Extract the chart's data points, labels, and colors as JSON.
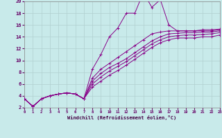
{
  "background_color": "#c8eaea",
  "grid_color": "#b0d0d0",
  "line_color": "#880088",
  "xlabel": "Windchill (Refroidissement éolien,°C)",
  "xlim": [
    0,
    23
  ],
  "ylim": [
    2,
    20
  ],
  "yticks": [
    2,
    4,
    6,
    8,
    10,
    12,
    14,
    16,
    18,
    20
  ],
  "xticks": [
    0,
    1,
    2,
    3,
    4,
    5,
    6,
    7,
    8,
    9,
    10,
    11,
    12,
    13,
    14,
    15,
    16,
    17,
    18,
    19,
    20,
    21,
    22,
    23
  ],
  "series": [
    [
      3.5,
      2.2,
      3.5,
      4.0,
      4.3,
      4.5,
      4.3,
      3.5,
      8.5,
      11.0,
      14.0,
      15.5,
      18.0,
      18.0,
      21.5,
      19.0,
      20.3,
      16.0,
      15.0,
      15.0,
      15.0,
      15.2,
      15.2,
      15.3
    ],
    [
      3.5,
      2.2,
      3.5,
      4.0,
      4.3,
      4.5,
      4.3,
      3.5,
      7.0,
      8.5,
      9.5,
      10.5,
      11.5,
      12.5,
      13.5,
      14.5,
      14.8,
      15.0,
      15.0,
      15.0,
      15.0,
      15.0,
      15.0,
      15.2
    ],
    [
      3.5,
      2.2,
      3.5,
      4.0,
      4.3,
      4.5,
      4.3,
      3.5,
      6.5,
      7.8,
      8.8,
      9.5,
      10.3,
      11.3,
      12.3,
      13.3,
      14.0,
      14.5,
      14.6,
      14.7,
      14.7,
      14.8,
      14.8,
      15.0
    ],
    [
      3.5,
      2.2,
      3.5,
      4.0,
      4.3,
      4.5,
      4.3,
      3.5,
      6.0,
      7.2,
      8.2,
      9.0,
      9.8,
      10.8,
      11.8,
      12.8,
      13.5,
      14.0,
      14.2,
      14.3,
      14.3,
      14.4,
      14.5,
      14.7
    ],
    [
      3.5,
      2.2,
      3.5,
      4.0,
      4.3,
      4.5,
      4.3,
      3.5,
      5.5,
      6.5,
      7.5,
      8.3,
      9.2,
      10.2,
      11.2,
      12.2,
      13.0,
      13.5,
      13.8,
      13.8,
      13.8,
      14.0,
      14.0,
      14.3
    ]
  ]
}
